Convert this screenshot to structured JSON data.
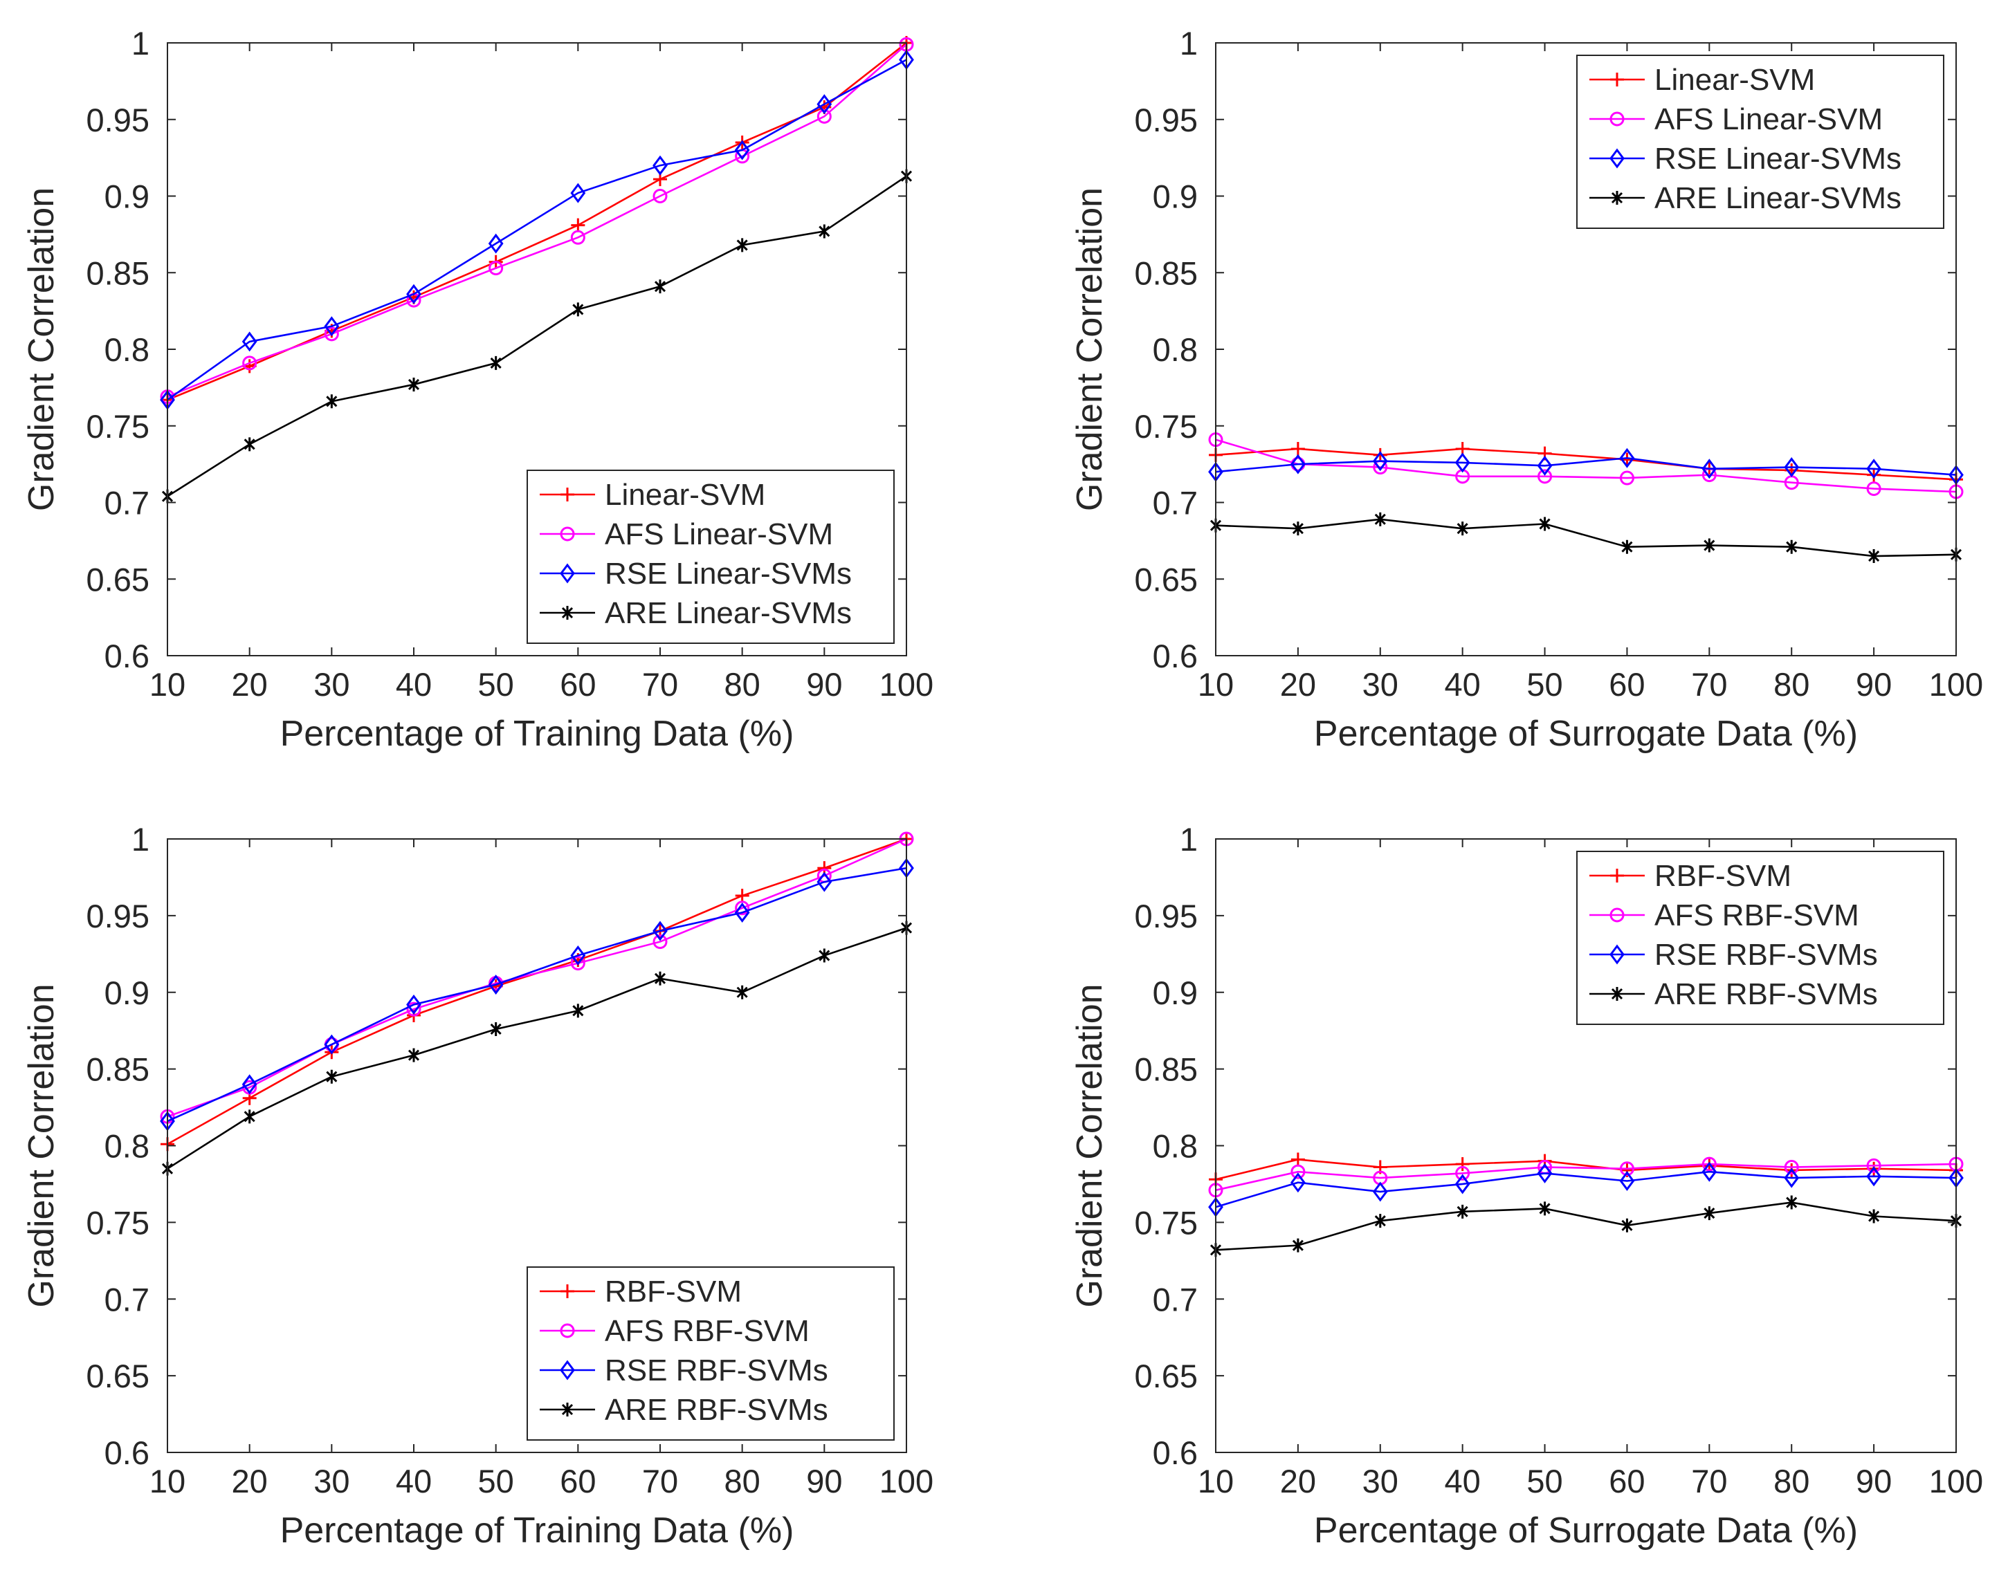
{
  "chart_data": [
    {
      "type": "line",
      "xlabel": "Percentage of Training Data (%)",
      "ylabel": "Gradient Correlation",
      "xlim": [
        10,
        100
      ],
      "ylim": [
        0.6,
        1
      ],
      "x": [
        10,
        20,
        30,
        40,
        50,
        60,
        70,
        80,
        90,
        100
      ],
      "xticks": [
        "10",
        "20",
        "30",
        "40",
        "50",
        "60",
        "70",
        "80",
        "90",
        "100"
      ],
      "yticks": [
        "0.6",
        "0.65",
        "0.7",
        "0.75",
        "0.8",
        "0.85",
        "0.9",
        "0.95",
        "1"
      ],
      "grid": false,
      "legend_position": "bottom-right",
      "series": [
        {
          "name": "Linear-SVM",
          "color": "#ff0000",
          "marker": "plus",
          "values": [
            0.767,
            0.789,
            0.812,
            0.834,
            0.857,
            0.881,
            0.911,
            0.935,
            0.958,
            1.0
          ]
        },
        {
          "name": "AFS Linear-SVM",
          "color": "#ff00ff",
          "marker": "circle",
          "values": [
            0.769,
            0.791,
            0.81,
            0.832,
            0.853,
            0.873,
            0.9,
            0.926,
            0.952,
            0.999
          ]
        },
        {
          "name": "RSE Linear-SVMs",
          "color": "#0000ff",
          "marker": "diamond",
          "values": [
            0.767,
            0.805,
            0.815,
            0.836,
            0.869,
            0.902,
            0.92,
            0.93,
            0.96,
            0.989
          ]
        },
        {
          "name": "ARE Linear-SVMs",
          "color": "#000000",
          "marker": "asterisk",
          "values": [
            0.704,
            0.738,
            0.766,
            0.777,
            0.791,
            0.826,
            0.841,
            0.868,
            0.877,
            0.913
          ]
        }
      ]
    },
    {
      "type": "line",
      "xlabel": "Percentage of Surrogate Data (%)",
      "ylabel": "Gradient Correlation",
      "xlim": [
        10,
        100
      ],
      "ylim": [
        0.6,
        1
      ],
      "x": [
        10,
        20,
        30,
        40,
        50,
        60,
        70,
        80,
        90,
        100
      ],
      "xticks": [
        "10",
        "20",
        "30",
        "40",
        "50",
        "60",
        "70",
        "80",
        "90",
        "100"
      ],
      "yticks": [
        "0.6",
        "0.65",
        "0.7",
        "0.75",
        "0.8",
        "0.85",
        "0.9",
        "0.95",
        "1"
      ],
      "grid": false,
      "legend_position": "top-right",
      "series": [
        {
          "name": "Linear-SVM",
          "color": "#ff0000",
          "marker": "plus",
          "values": [
            0.731,
            0.735,
            0.731,
            0.735,
            0.732,
            0.728,
            0.722,
            0.721,
            0.718,
            0.715
          ]
        },
        {
          "name": "AFS Linear-SVM",
          "color": "#ff00ff",
          "marker": "circle",
          "values": [
            0.741,
            0.725,
            0.723,
            0.717,
            0.717,
            0.716,
            0.718,
            0.713,
            0.709,
            0.707
          ]
        },
        {
          "name": "RSE Linear-SVMs",
          "color": "#0000ff",
          "marker": "diamond",
          "values": [
            0.72,
            0.725,
            0.727,
            0.726,
            0.724,
            0.729,
            0.722,
            0.723,
            0.722,
            0.718
          ]
        },
        {
          "name": "ARE Linear-SVMs",
          "color": "#000000",
          "marker": "asterisk",
          "values": [
            0.685,
            0.683,
            0.689,
            0.683,
            0.686,
            0.671,
            0.672,
            0.671,
            0.665,
            0.666
          ]
        }
      ]
    },
    {
      "type": "line",
      "xlabel": "Percentage of Training Data (%)",
      "ylabel": "Gradient Correlation",
      "xlim": [
        10,
        100
      ],
      "ylim": [
        0.6,
        1
      ],
      "x": [
        10,
        20,
        30,
        40,
        50,
        60,
        70,
        80,
        90,
        100
      ],
      "xticks": [
        "10",
        "20",
        "30",
        "40",
        "50",
        "60",
        "70",
        "80",
        "90",
        "100"
      ],
      "yticks": [
        "0.6",
        "0.65",
        "0.7",
        "0.75",
        "0.8",
        "0.85",
        "0.9",
        "0.95",
        "1"
      ],
      "grid": false,
      "legend_position": "bottom-right",
      "series": [
        {
          "name": "RBF-SVM",
          "color": "#ff0000",
          "marker": "plus",
          "values": [
            0.801,
            0.831,
            0.861,
            0.885,
            0.904,
            0.921,
            0.94,
            0.963,
            0.981,
            1.0
          ]
        },
        {
          "name": "AFS RBF-SVM",
          "color": "#ff00ff",
          "marker": "circle",
          "values": [
            0.819,
            0.838,
            0.866,
            0.889,
            0.906,
            0.919,
            0.933,
            0.955,
            0.976,
            1.0
          ]
        },
        {
          "name": "RSE RBF-SVMs",
          "color": "#0000ff",
          "marker": "diamond",
          "values": [
            0.816,
            0.84,
            0.866,
            0.892,
            0.905,
            0.924,
            0.94,
            0.952,
            0.972,
            0.981
          ]
        },
        {
          "name": "ARE RBF-SVMs",
          "color": "#000000",
          "marker": "asterisk",
          "values": [
            0.785,
            0.819,
            0.845,
            0.859,
            0.876,
            0.888,
            0.909,
            0.9,
            0.924,
            0.942
          ]
        }
      ]
    },
    {
      "type": "line",
      "xlabel": "Percentage of Surrogate Data (%)",
      "ylabel": "Gradient Correlation",
      "xlim": [
        10,
        100
      ],
      "ylim": [
        0.6,
        1
      ],
      "x": [
        10,
        20,
        30,
        40,
        50,
        60,
        70,
        80,
        90,
        100
      ],
      "xticks": [
        "10",
        "20",
        "30",
        "40",
        "50",
        "60",
        "70",
        "80",
        "90",
        "100"
      ],
      "yticks": [
        "0.6",
        "0.65",
        "0.7",
        "0.75",
        "0.8",
        "0.85",
        "0.9",
        "0.95",
        "1"
      ],
      "grid": false,
      "legend_position": "top-right",
      "series": [
        {
          "name": "RBF-SVM",
          "color": "#ff0000",
          "marker": "plus",
          "values": [
            0.778,
            0.791,
            0.786,
            0.788,
            0.79,
            0.784,
            0.787,
            0.784,
            0.785,
            0.784
          ]
        },
        {
          "name": "AFS RBF-SVM",
          "color": "#ff00ff",
          "marker": "circle",
          "values": [
            0.771,
            0.783,
            0.779,
            0.782,
            0.786,
            0.785,
            0.788,
            0.786,
            0.787,
            0.788
          ]
        },
        {
          "name": "RSE RBF-SVMs",
          "color": "#0000ff",
          "marker": "diamond",
          "values": [
            0.76,
            0.776,
            0.77,
            0.775,
            0.782,
            0.777,
            0.783,
            0.779,
            0.78,
            0.779
          ]
        },
        {
          "name": "ARE RBF-SVMs",
          "color": "#000000",
          "marker": "asterisk",
          "values": [
            0.732,
            0.735,
            0.751,
            0.757,
            0.759,
            0.748,
            0.756,
            0.763,
            0.754,
            0.751
          ]
        }
      ]
    }
  ]
}
